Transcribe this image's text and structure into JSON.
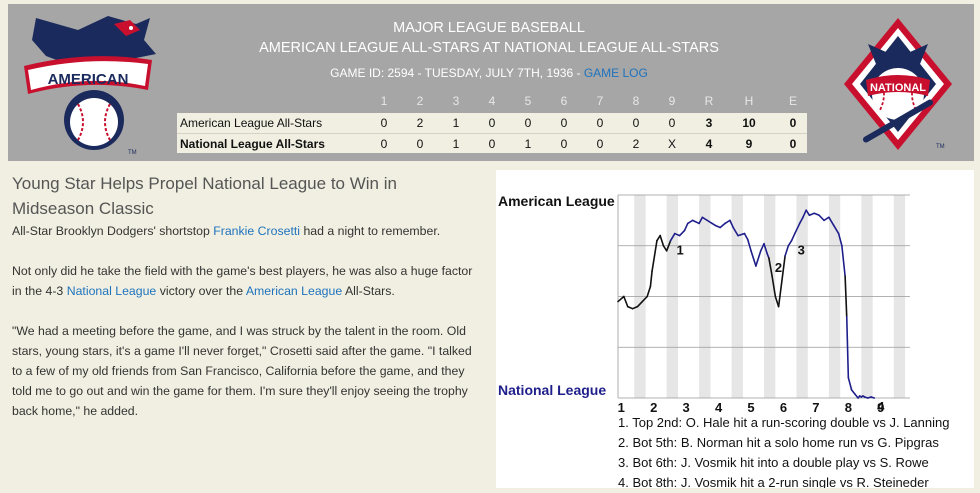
{
  "header": {
    "title_line1": "MAJOR LEAGUE BASEBALL",
    "title_line2": "AMERICAN LEAGUE ALL-STARS AT NATIONAL LEAGUE ALL-STARS",
    "game_info": "GAME ID: 2594 - TUESDAY, JULY 7TH, 1936 - ",
    "game_log_link": "GAME LOG",
    "logo_al_text": "AMERICAN",
    "logo_nl_text": "NATIONAL",
    "tm": "TM"
  },
  "linescore": {
    "columns": [
      "1",
      "2",
      "3",
      "4",
      "5",
      "6",
      "7",
      "8",
      "9",
      "R",
      "H",
      "E"
    ],
    "rows": [
      {
        "team": "American League All-Stars",
        "innings": [
          "0",
          "2",
          "1",
          "0",
          "0",
          "0",
          "0",
          "0",
          "0"
        ],
        "r": "3",
        "h": "10",
        "e": "0"
      },
      {
        "team": "National League All-Stars",
        "innings": [
          "0",
          "0",
          "1",
          "0",
          "1",
          "0",
          "0",
          "2",
          "X"
        ],
        "r": "4",
        "h": "9",
        "e": "0"
      }
    ]
  },
  "article": {
    "headline": "Young Star Helps Propel National League to Win in Midseason Classic",
    "p1_before": "All-Star Brooklyn Dodgers' shortstop ",
    "p1_link": "Frankie Crosetti",
    "p1_after": " had a night to remember.",
    "p2_a": "Not only did he take the field with the game's best players, he was also a huge factor in the 4-3 ",
    "p2_link1": "National League",
    "p2_b": " victory over the ",
    "p2_link2": "American League",
    "p2_c": " All-Stars.",
    "p3": "\"We had a meeting before the game, and I was struck by the talent in the room. Old stars, young stars, it's a game I'll never forget,\" Crosetti said after the game. \"I talked to a few of my old friends from San Francisco, California before the game, and they told me to go out and win the game for them. I'm sure they'll enjoy seeing the trophy back home,\" he added."
  },
  "chart_data": {
    "type": "line",
    "title": "",
    "top_label": "American League",
    "bottom_label": "National League",
    "xlabel": "",
    "ylabel": "",
    "x_ticks": [
      "1",
      "2",
      "3",
      "4",
      "5",
      "6",
      "7",
      "8",
      "9"
    ],
    "xlim": [
      0,
      9
    ],
    "ylim": [
      -1,
      1
    ],
    "grid": true,
    "colors": {
      "line": "#1f1f8c",
      "line_dark": "#111111",
      "top_label": "#111111",
      "bottom_label": "#1f1f8c",
      "band": "#e6e6e6",
      "grid": "#999999"
    },
    "annotations": [
      {
        "label": "1",
        "x": 1.62
      },
      {
        "label": "2",
        "x": 4.65
      },
      {
        "label": "3",
        "x": 5.35
      },
      {
        "label": "4",
        "x": 7.8
      }
    ],
    "series": [
      {
        "x": [
          0,
          0.18,
          0.3,
          0.45,
          0.6,
          0.75,
          0.9,
          1.0,
          1.05,
          1.2,
          1.3,
          1.4,
          1.5,
          1.62,
          1.75,
          1.9,
          2.05,
          2.15,
          2.3,
          2.5,
          2.6,
          2.75,
          2.9,
          3.0,
          3.15,
          3.3,
          3.45,
          3.55,
          3.7,
          3.9,
          4.0,
          4.1,
          4.25,
          4.4,
          4.5,
          4.6,
          4.65,
          4.75,
          4.85,
          4.95,
          5.05,
          5.15,
          5.25,
          5.35,
          5.45,
          5.6,
          5.7,
          5.8,
          5.9,
          6.05,
          6.2,
          6.35,
          6.5,
          6.65,
          6.8,
          6.9,
          7.0,
          7.05,
          7.1,
          7.2,
          7.3,
          7.4,
          7.45,
          7.5,
          7.55,
          7.6,
          7.7,
          7.8,
          7.9
        ],
        "y": [
          -0.05,
          0.0,
          -0.1,
          -0.12,
          -0.1,
          -0.05,
          0.0,
          0.1,
          0.25,
          0.55,
          0.6,
          0.5,
          0.45,
          0.55,
          0.62,
          0.6,
          0.65,
          0.72,
          0.75,
          0.72,
          0.78,
          0.75,
          0.72,
          0.7,
          0.68,
          0.72,
          0.75,
          0.68,
          0.6,
          0.62,
          0.56,
          0.45,
          0.3,
          0.45,
          0.52,
          0.42,
          0.38,
          0.2,
          0.0,
          -0.1,
          0.15,
          0.4,
          0.5,
          0.55,
          0.62,
          0.72,
          0.78,
          0.85,
          0.8,
          0.82,
          0.8,
          0.75,
          0.78,
          0.7,
          0.62,
          0.5,
          0.2,
          -0.2,
          -0.8,
          -0.92,
          -0.96,
          -1.0,
          -0.98,
          -0.99,
          -0.98,
          -0.99,
          -1.0,
          -0.99,
          -1.0
        ]
      }
    ],
    "plays": [
      "1. Top 2nd: O. Hale hit a run-scoring double vs J. Lanning",
      "2. Bot 5th: B. Norman hit a solo home run vs G. Pipgras",
      "3. Bot 6th: J. Vosmik hit into a double play vs S. Rowe",
      "4. Bot 8th: J. Vosmik hit a 2-run single vs R. Steineder"
    ]
  }
}
